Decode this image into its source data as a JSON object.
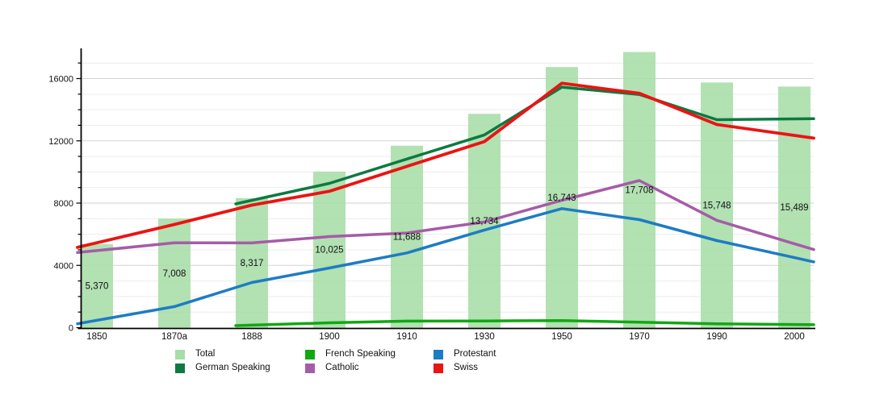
{
  "chart_data": {
    "type": "bar",
    "title": "",
    "xlabel": "",
    "ylabel": "",
    "categories": [
      "1850",
      "1870a",
      "1888",
      "1900",
      "1910",
      "1930",
      "1950",
      "1970",
      "1990",
      "2000"
    ],
    "bar_series": {
      "name": "Total",
      "values": [
        5370,
        7008,
        8317,
        10025,
        11688,
        13734,
        16743,
        17708,
        15748,
        15489
      ],
      "labels": [
        "5,370",
        "7,008",
        "8,317",
        "10,025",
        "11,688",
        "13,734",
        "16,743",
        "17,708",
        "15,748",
        "15,489"
      ]
    },
    "line_series": [
      {
        "name": "German Speaking",
        "values": [
          null,
          null,
          8180,
          9270,
          10830,
          12380,
          15450,
          14980,
          13360,
          13410
        ]
      },
      {
        "name": "French Speaking",
        "values": [
          null,
          null,
          160,
          310,
          420,
          430,
          450,
          350,
          250,
          200
        ]
      },
      {
        "name": "Protestant",
        "values": [
          470,
          1350,
          2900,
          3830,
          4800,
          6270,
          7650,
          6940,
          5590,
          4500
        ]
      },
      {
        "name": "Catholic",
        "values": [
          4950,
          5450,
          5440,
          5850,
          6080,
          6790,
          8180,
          9450,
          6890,
          5390
        ]
      },
      {
        "name": "Swiss",
        "values": [
          5450,
          6630,
          7870,
          8760,
          10360,
          11950,
          15700,
          15050,
          13050,
          12350
        ]
      }
    ],
    "ylim": [
      0,
      18000
    ],
    "y_ticks": [
      0,
      4000,
      8000,
      12000,
      16000
    ],
    "y_tick_labels": [
      "0",
      "4000",
      "8000",
      "12000",
      "16000"
    ],
    "minor_tick_step": 1000,
    "grid": "horizontal-only",
    "legend_position": "bottom"
  },
  "colors": {
    "Total": "#a7dda7",
    "German Speaking": "#0c7a41",
    "French Speaking": "#10a910",
    "Protestant": "#1d7cc4",
    "Catholic": "#a55ca8",
    "Swiss": "#ec1313",
    "axis": "#000000",
    "grid_minor": "#ececec",
    "grid_major": "#d2d2d2",
    "label_text": "#111111"
  },
  "legend": {
    "columns": [
      [
        "Total",
        "German Speaking"
      ],
      [
        "French Speaking",
        "Catholic"
      ],
      [
        "Protestant",
        "Swiss"
      ]
    ]
  }
}
